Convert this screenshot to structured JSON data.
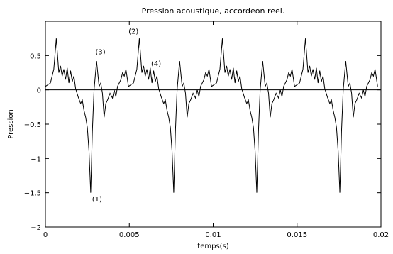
{
  "chart_data": {
    "type": "line",
    "title": "Pression acoustique, accordeon reel.",
    "xlabel": "temps(s)",
    "ylabel": "Pression",
    "xlim": [
      0,
      0.02
    ],
    "ylim": [
      -2,
      1
    ],
    "x_ticks": [
      0,
      0.005,
      0.01,
      0.015,
      0.02
    ],
    "x_tick_labels": [
      "0",
      "0.005",
      "0.01",
      "0.015",
      "0.02"
    ],
    "y_ticks": [
      -2,
      -1.5,
      -1,
      -0.5,
      0,
      0.5
    ],
    "y_tick_labels": [
      "−2",
      "−1.5",
      "−1",
      "−0.5",
      "0",
      "0.5"
    ],
    "grid": false,
    "zero_line": true,
    "period_s": 0.00495,
    "series": [
      {
        "x": [
          0,
          0.0003,
          0.0005,
          0.00065,
          0.0008,
          0.0009,
          0.001,
          0.0011,
          0.0012,
          0.0013,
          0.0014,
          0.0015,
          0.0016,
          0.0017,
          0.0018,
          0.00195,
          0.0021,
          0.0022,
          0.0023,
          0.0024,
          0.0025,
          0.0026,
          0.0027,
          0.0028,
          0.0029,
          0.00305,
          0.0032,
          0.0033,
          0.0034,
          0.0035,
          0.0036,
          0.0037,
          0.00385,
          0.004,
          0.0041,
          0.0042,
          0.0043,
          0.0044,
          0.0045,
          0.0046,
          0.0047,
          0.0048,
          0.00495
        ],
        "y": [
          0.05,
          0.1,
          0.3,
          0.75,
          0.25,
          0.35,
          0.2,
          0.3,
          0.15,
          0.32,
          0.1,
          0.28,
          0.12,
          0.2,
          0.02,
          -0.1,
          -0.2,
          -0.15,
          -0.3,
          -0.4,
          -0.55,
          -0.9,
          -1.5,
          -0.6,
          0.0,
          0.42,
          0.05,
          0.1,
          -0.05,
          -0.4,
          -0.2,
          -0.15,
          -0.05,
          -0.12,
          0.0,
          -0.1,
          0.05,
          0.1,
          0.15,
          0.25,
          0.2,
          0.3,
          0.05
        ]
      }
    ],
    "annotations": [
      {
        "text": "(1)",
        "x": 0.00308,
        "y": -1.63
      },
      {
        "text": "(2)",
        "x": 0.00525,
        "y": 0.82
      },
      {
        "text": "(3)",
        "x": 0.00328,
        "y": 0.52
      },
      {
        "text": "(4)",
        "x": 0.0066,
        "y": 0.35
      }
    ]
  }
}
